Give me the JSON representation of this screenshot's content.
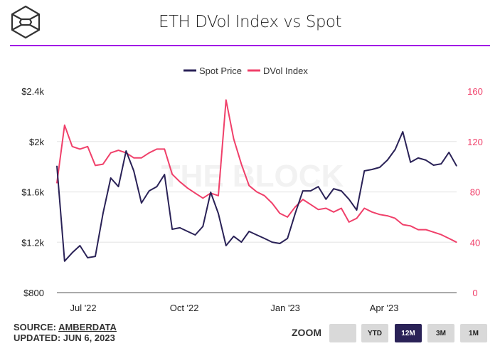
{
  "header": {
    "title": "ETH DVol Index vs Spot",
    "accent_color": "#a000e6"
  },
  "footer": {
    "source_prefix": "SOURCE: ",
    "source_link": "AMBERDATA",
    "updated": "UPDATED: JUN 6, 2023"
  },
  "zoom": {
    "label": "ZOOM",
    "buttons": [
      {
        "label": "",
        "active": false
      },
      {
        "label": "YTD",
        "active": false
      },
      {
        "label": "12M",
        "active": true
      },
      {
        "label": "3M",
        "active": false
      },
      {
        "label": "1M",
        "active": false
      }
    ]
  },
  "chart_data": {
    "type": "line",
    "title": "ETH DVol Index vs Spot",
    "watermark": "THE BLOCK",
    "legend_position": "top-center",
    "grid": true,
    "x_ticks": [
      {
        "date": "2022-07-01",
        "label": "Jul '22"
      },
      {
        "date": "2022-10-01",
        "label": "Oct '22"
      },
      {
        "date": "2023-01-01",
        "label": "Jan '23"
      },
      {
        "date": "2023-04-01",
        "label": "Apr '23"
      }
    ],
    "xlim": [
      "2022-06-07",
      "2023-06-06"
    ],
    "y_left": {
      "range": [
        800,
        2400
      ],
      "ticks": [
        800,
        1200,
        1600,
        2000,
        2400
      ],
      "tick_labels": [
        "$800",
        "$1.2k",
        "$1.6k",
        "$2k",
        "$2.4k"
      ],
      "color": "#222222"
    },
    "y_right": {
      "range": [
        0,
        160
      ],
      "ticks": [
        0,
        40,
        80,
        120,
        160
      ],
      "tick_labels": [
        "0",
        "40",
        "80",
        "120",
        "160"
      ],
      "color": "#f0406a"
    },
    "x": [
      "2022-06-07",
      "2022-06-14",
      "2022-06-21",
      "2022-06-28",
      "2022-07-05",
      "2022-07-12",
      "2022-07-19",
      "2022-07-26",
      "2022-08-02",
      "2022-08-09",
      "2022-08-16",
      "2022-08-23",
      "2022-08-30",
      "2022-09-06",
      "2022-09-13",
      "2022-09-20",
      "2022-09-27",
      "2022-10-04",
      "2022-10-11",
      "2022-10-18",
      "2022-10-25",
      "2022-11-01",
      "2022-11-08",
      "2022-11-15",
      "2022-11-22",
      "2022-11-29",
      "2022-12-06",
      "2022-12-13",
      "2022-12-20",
      "2022-12-27",
      "2023-01-03",
      "2023-01-10",
      "2023-01-17",
      "2023-01-24",
      "2023-01-31",
      "2023-02-07",
      "2023-02-14",
      "2023-02-21",
      "2023-02-28",
      "2023-03-07",
      "2023-03-14",
      "2023-03-21",
      "2023-03-28",
      "2023-04-04",
      "2023-04-11",
      "2023-04-18",
      "2023-04-25",
      "2023-05-02",
      "2023-05-09",
      "2023-05-16",
      "2023-05-23",
      "2023-05-30",
      "2023-06-06"
    ],
    "series": [
      {
        "name": "Spot Price",
        "axis": "left",
        "color": "#2a2257",
        "values": [
          1806,
          1050,
          1117,
          1173,
          1077,
          1088,
          1428,
          1710,
          1642,
          1925,
          1767,
          1512,
          1608,
          1642,
          1738,
          1303,
          1315,
          1286,
          1258,
          1326,
          1597,
          1428,
          1173,
          1247,
          1201,
          1286,
          1258,
          1230,
          1201,
          1190,
          1230,
          1428,
          1608,
          1608,
          1642,
          1541,
          1625,
          1608,
          1541,
          1456,
          1767,
          1778,
          1795,
          1852,
          1936,
          2078,
          1835,
          1869,
          1852,
          1812,
          1823,
          1914,
          1806
        ]
      },
      {
        "name": "DVol Index",
        "axis": "right",
        "color": "#f0406a",
        "values": [
          87,
          133,
          116,
          114,
          116,
          101,
          102,
          111,
          113,
          111,
          107,
          107,
          111,
          114,
          114,
          94,
          88,
          83,
          79,
          75,
          79,
          77,
          153,
          122,
          102,
          85,
          80,
          77,
          71,
          63,
          60,
          68,
          74,
          70,
          66,
          67,
          64,
          67,
          56,
          59,
          67,
          64,
          62,
          61,
          59,
          54,
          53,
          50,
          50,
          48,
          46,
          43,
          40
        ]
      }
    ]
  }
}
